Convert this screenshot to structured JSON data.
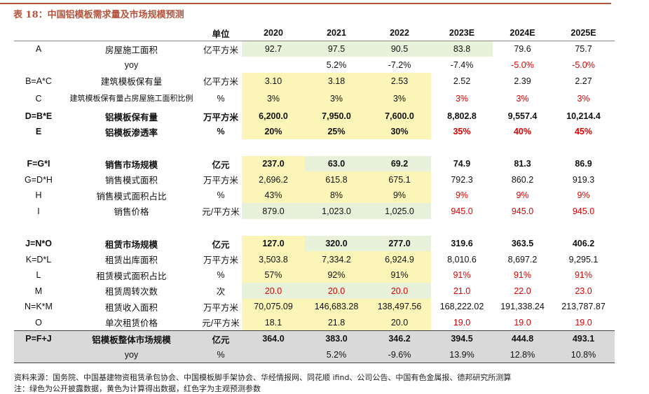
{
  "title": "表 18：中国铝模板需求量及市场规模预测",
  "header": {
    "unit_label": "单位",
    "years": [
      "2020",
      "2021",
      "2022",
      "2023E",
      "2024E",
      "2025E"
    ]
  },
  "rows": [
    {
      "code": "A",
      "name": "房屋施工面积",
      "unit": "亿平方米",
      "v": [
        "92.7",
        "97.5",
        "90.5",
        "83.8",
        "79.6",
        "75.7"
      ]
    },
    {
      "code": "",
      "name": "yoy",
      "unit": "",
      "v": [
        "",
        "5.2%",
        "-7.2%",
        "-7.4%",
        "-5.0%",
        "-5.0%"
      ]
    },
    {
      "code": "B=A*C",
      "name": "建筑模板保有量",
      "unit": "亿平方米",
      "v": [
        "3.10",
        "3.18",
        "2.53",
        "2.52",
        "2.39",
        "2.27"
      ]
    },
    {
      "code": "C",
      "name": "建筑模板保有量占房屋施工面积比例",
      "unit": "%",
      "v": [
        "3%",
        "3%",
        "3%",
        "3%",
        "3%",
        "3%"
      ]
    },
    {
      "code": "D=B*E",
      "name": "铝模板保有量",
      "unit": "万平方米",
      "v": [
        "6,200.0",
        "7,950.0",
        "7,600.0",
        "8,802.8",
        "9,557.4",
        "10,214.4"
      ]
    },
    {
      "code": "E",
      "name": "铝模板渗透率",
      "unit": "%",
      "v": [
        "20%",
        "25%",
        "30%",
        "35%",
        "40%",
        "45%"
      ]
    },
    {
      "code": "F=G*I",
      "name": "销售市场规模",
      "unit": "亿元",
      "v": [
        "237.0",
        "63.0",
        "69.2",
        "74.9",
        "81.3",
        "86.9"
      ]
    },
    {
      "code": "G=D*H",
      "name": "销售模式面积",
      "unit": "万平方米",
      "v": [
        "2,696.2",
        "615.8",
        "675.1",
        "792.3",
        "860.2",
        "919.3"
      ]
    },
    {
      "code": "H",
      "name": "销售模式面积占比",
      "unit": "%",
      "v": [
        "43%",
        "8%",
        "9%",
        "9%",
        "9%",
        "9%"
      ]
    },
    {
      "code": "I",
      "name": "销售价格",
      "unit": "元/平方米",
      "v": [
        "879.0",
        "1,023.0",
        "1,025.0",
        "945.0",
        "945.0",
        "945.0"
      ]
    },
    {
      "code": "J=N*O",
      "name": "租赁市场规模",
      "unit": "亿元",
      "v": [
        "127.0",
        "320.0",
        "277.0",
        "319.6",
        "363.5",
        "406.2"
      ]
    },
    {
      "code": "K=D*L",
      "name": "租赁出库面积",
      "unit": "万平方米",
      "v": [
        "3,503.8",
        "7,334.2",
        "6,924.9",
        "8,010.6",
        "8,697.2",
        "9,295.1"
      ]
    },
    {
      "code": "L",
      "name": "租赁模式面积占比",
      "unit": "%",
      "v": [
        "57%",
        "92%",
        "91%",
        "91%",
        "91%",
        "91%"
      ]
    },
    {
      "code": "M",
      "name": "租赁周转次数",
      "unit": "次",
      "v": [
        "20.0",
        "20.0",
        "20.0",
        "21.0",
        "22.0",
        "23.0"
      ]
    },
    {
      "code": "N=K*M",
      "name": "租赁收入面积",
      "unit": "万平方米",
      "v": [
        "70,075.09",
        "146,683.28",
        "138,497.56",
        "168,222.02",
        "191,338.24",
        "213,787.87"
      ]
    },
    {
      "code": "O",
      "name": "单次租赁价格",
      "unit": "元/平方米",
      "v": [
        "18.1",
        "21.8",
        "20.0",
        "19.0",
        "19.0",
        "19.0"
      ]
    },
    {
      "code": "P=F+J",
      "name": "铝模板整体市场规模",
      "unit": "亿元",
      "v": [
        "364.0",
        "383.0",
        "346.2",
        "394.5",
        "444.8",
        "493.1"
      ]
    },
    {
      "code": "",
      "name": "yoy",
      "unit": "%",
      "v": [
        "",
        "5.2%",
        "-9.6%",
        "13.9%",
        "12.8%",
        "10.8%"
      ]
    }
  ],
  "footer": {
    "source": "资料来源：国务院、中国基建物资租赁承包协会、中国模板脚手架协会、华经情报网、同花顺 ifind、公司公告、中国有色金属报、德邦研究所测算",
    "note": "注：绿色为公开披露数据，黄色为计算得出数据，红色字为主观预测参数"
  },
  "colors": {
    "title": "#b5533c",
    "yellow": "#fbf6b8",
    "green": "#e8f1d9",
    "red": "#e00000",
    "grey": "#d9d9d9"
  }
}
